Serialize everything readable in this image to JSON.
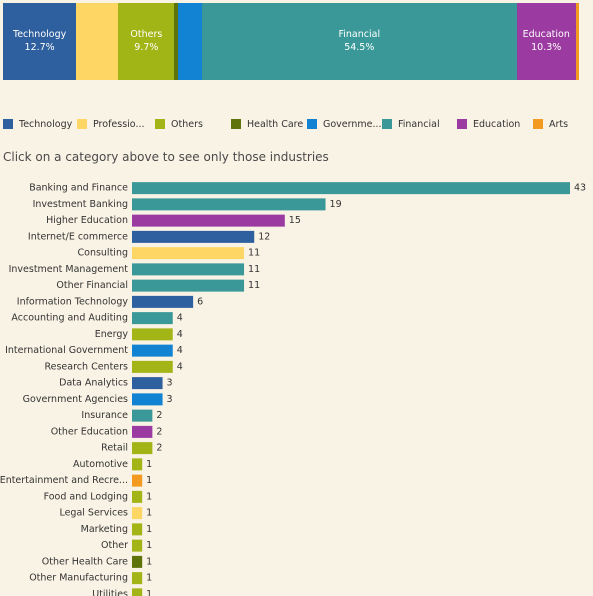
{
  "instruction": "Click on a category above to see only those industries",
  "colors": {
    "Technology": "#2e5f9e",
    "Professional": "#fdd664",
    "Others": "#a2b516",
    "Health Care": "#5e7309",
    "Government": "#1283d2",
    "Financial": "#3a9998",
    "Education": "#9b3aa1",
    "Arts": "#f39a21"
  },
  "chart_data": [
    {
      "type": "bar",
      "orientation": "stacked-horizontal",
      "segments": [
        {
          "name": "Technology",
          "share": 12.7,
          "label": "Technology",
          "value_label": "12.7%"
        },
        {
          "name": "Professional",
          "share": 7.3,
          "label": "",
          "value_label": ""
        },
        {
          "name": "Others",
          "share": 9.7,
          "label": "Others",
          "value_label": "9.7%"
        },
        {
          "name": "Health Care",
          "share": 0.6,
          "label": "",
          "value_label": ""
        },
        {
          "name": "Government",
          "share": 4.2,
          "label": "",
          "value_label": ""
        },
        {
          "name": "Financial",
          "share": 54.5,
          "label": "Financial",
          "value_label": "54.5%"
        },
        {
          "name": "Education",
          "share": 10.3,
          "label": "Education",
          "value_label": "10.3%"
        },
        {
          "name": "Arts",
          "share": 0.6,
          "label": "",
          "value_label": ""
        }
      ],
      "legend": [
        {
          "name": "Technology",
          "label": "Technology"
        },
        {
          "name": "Professional",
          "label": "Professio..."
        },
        {
          "name": "Others",
          "label": "Others"
        },
        {
          "name": "Health Care",
          "label": "Health Care"
        },
        {
          "name": "Government",
          "label": "Governme..."
        },
        {
          "name": "Financial",
          "label": "Financial"
        },
        {
          "name": "Education",
          "label": "Education"
        },
        {
          "name": "Arts",
          "label": "Arts"
        }
      ]
    },
    {
      "type": "bar",
      "orientation": "horizontal",
      "xlim": [
        0,
        43
      ],
      "categories": [
        "Banking and Finance",
        "Investment Banking",
        "Higher Education",
        "Internet/E commerce",
        "Consulting",
        "Investment Management",
        "Other Financial",
        "Information Technology",
        "Accounting and Auditing",
        "Energy",
        "International Government",
        "Research Centers",
        "Data Analytics",
        "Government Agencies",
        "Insurance",
        "Other Education",
        "Retail",
        "Automotive",
        "Entertainment and Recre...",
        "Food and Lodging",
        "Legal Services",
        "Marketing",
        "Other",
        "Other Health Care",
        "Other Manufacturing",
        "Utilities"
      ],
      "values": [
        43,
        19,
        15,
        12,
        11,
        11,
        11,
        6,
        4,
        4,
        4,
        4,
        3,
        3,
        2,
        2,
        2,
        1,
        1,
        1,
        1,
        1,
        1,
        1,
        1,
        1
      ],
      "groups": [
        "Financial",
        "Financial",
        "Education",
        "Technology",
        "Professional",
        "Financial",
        "Financial",
        "Technology",
        "Financial",
        "Others",
        "Government",
        "Others",
        "Technology",
        "Government",
        "Financial",
        "Education",
        "Others",
        "Others",
        "Arts",
        "Others",
        "Professional",
        "Others",
        "Others",
        "Health Care",
        "Others",
        "Others"
      ]
    }
  ]
}
